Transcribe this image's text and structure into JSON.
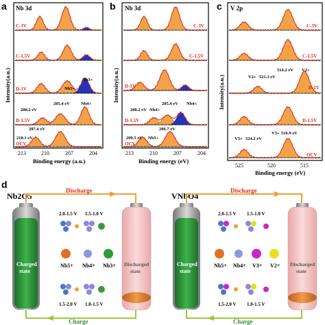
{
  "figure": {
    "panels": [
      {
        "letter": "a",
        "element": "Nb 3d",
        "xlabel": "Binding energy (a.u.)",
        "ylabel": "Intensity(a.u.)",
        "xticks": [
          "213",
          "210",
          "207",
          "204"
        ],
        "rows": [
          "C-3V",
          "C-1.5V",
          "D-1V",
          "D-1.5V",
          "OCV"
        ],
        "annotations": [
          "Nb5+",
          "Nb4+",
          "Nb3+",
          "205.4 eV",
          "208.2 eV",
          "207.4 eV",
          "210.1 eV"
        ]
      },
      {
        "letter": "b",
        "element": "Nb 3d",
        "xlabel": "Binding energy (eV)",
        "ylabel": "Intensity(a.u.)",
        "xticks": [
          "213",
          "210",
          "207",
          "204"
        ],
        "rows": [
          "C-3V",
          "C-1.5V",
          "D-1V",
          "D-1.5V",
          "OCV"
        ],
        "annotations": [
          "205.4 eV",
          "Nb4+",
          "208.2 eV",
          "Nb4+",
          "209.5 eV",
          "Nb5+",
          "206.7 eV"
        ]
      },
      {
        "letter": "c",
        "element": "V 2p",
        "xlabel": "Binding energy (eV)",
        "ylabel": "Intensity(a.u.)",
        "xticks": [
          "525",
          "520",
          "515"
        ],
        "rows": [
          "C-3V",
          "C-1.5V",
          "D-1V",
          "D-1.5V",
          "OCV"
        ],
        "annotations": [
          "514.2 eV",
          "V2+",
          "V2+",
          "521.3 eV",
          "V3+",
          "524.2 eV",
          "V3+",
          "516.9 eV"
        ]
      }
    ],
    "panel_d": {
      "letter": "d",
      "left": {
        "title": "Nb2O5",
        "discharge": "Discharge",
        "charge": "Charge",
        "charged_state": "Charged\nstate",
        "discharged_state": "Discharged\nstate",
        "volt_top": [
          "2.0-1.5 V",
          "1.5-1.0 V"
        ],
        "volt_bottom": [
          "1.5-2.0 V",
          "1.0-1.5 V"
        ],
        "ions": [
          "Nb5+",
          "Nb4+",
          "Nb3+"
        ]
      },
      "right": {
        "title": "VNbO4",
        "discharge": "Discharge",
        "charge": "Charge",
        "charged_state": "Charged\nstate",
        "discharged_state": "Discharged\nstate",
        "volt_top": [
          "2.0-1.5 V",
          "1.5-1.0 V"
        ],
        "volt_bottom": [
          "1.5-2.0 V",
          "1.0-1.5 V"
        ],
        "ions": [
          "Nb5+",
          "Nb4+",
          "V3+",
          "V2+"
        ]
      }
    },
    "colors": {
      "orange": "#f4a24a",
      "blue": "#2434b8",
      "red": "#d62a1a",
      "green_battery": "#2f8f3a",
      "pink_battery": "#f4c7c7",
      "arrow_green": "#9acd32",
      "arrow_orange": "#f0a030"
    }
  }
}
